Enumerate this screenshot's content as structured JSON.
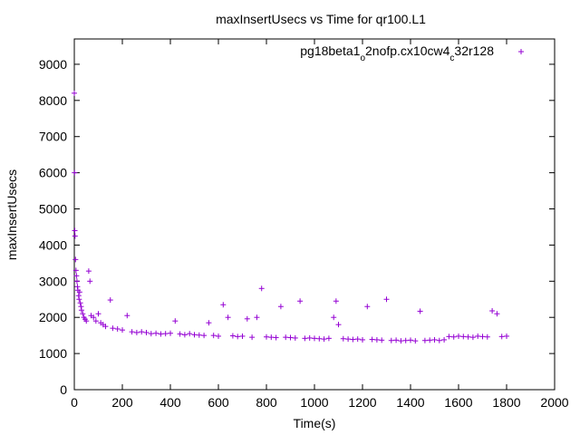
{
  "chart_data": {
    "type": "scatter",
    "title": "maxInsertUsecs vs Time for qr100.L1",
    "xlabel": "Time(s)",
    "ylabel": "maxInsertUsecs",
    "xlim": [
      0,
      2000
    ],
    "ylim": [
      0,
      9700
    ],
    "x_ticks": [
      "0",
      "200",
      "400",
      "600",
      "800",
      "1000",
      "1200",
      "1400",
      "1600",
      "1800",
      "2000"
    ],
    "y_ticks": [
      "0",
      "1000",
      "2000",
      "3000",
      "4000",
      "5000",
      "6000",
      "7000",
      "8000",
      "9000"
    ],
    "grid": false,
    "legend_position": "top-right",
    "series": [
      {
        "name": "pg18beta1_o2nofp.cx10cw4_c32r128",
        "name_parts": {
          "a": "pg18beta1",
          "sub1": "o",
          "b": "2nofp.cx10cw4",
          "sub2": "c",
          "c": "32r128"
        },
        "marker": "+",
        "color": "#9400d3",
        "points": [
          [
            0,
            8200
          ],
          [
            1,
            6000
          ],
          [
            2,
            4400
          ],
          [
            3,
            4250
          ],
          [
            5,
            3600
          ],
          [
            7,
            3300
          ],
          [
            9,
            3150
          ],
          [
            11,
            3000
          ],
          [
            13,
            2850
          ],
          [
            15,
            2750
          ],
          [
            18,
            2600
          ],
          [
            20,
            2500
          ],
          [
            22,
            2700
          ],
          [
            25,
            2400
          ],
          [
            28,
            2300
          ],
          [
            30,
            2200
          ],
          [
            35,
            2100
          ],
          [
            40,
            2000
          ],
          [
            45,
            1950
          ],
          [
            50,
            1900
          ],
          [
            60,
            3280
          ],
          [
            65,
            3000
          ],
          [
            70,
            2050
          ],
          [
            80,
            2000
          ],
          [
            90,
            1900
          ],
          [
            100,
            2100
          ],
          [
            110,
            1850
          ],
          [
            120,
            1800
          ],
          [
            130,
            1750
          ],
          [
            150,
            2480
          ],
          [
            160,
            1700
          ],
          [
            180,
            1680
          ],
          [
            200,
            1650
          ],
          [
            220,
            2050
          ],
          [
            240,
            1600
          ],
          [
            260,
            1580
          ],
          [
            280,
            1600
          ],
          [
            300,
            1580
          ],
          [
            320,
            1550
          ],
          [
            340,
            1560
          ],
          [
            360,
            1540
          ],
          [
            380,
            1550
          ],
          [
            400,
            1560
          ],
          [
            420,
            1900
          ],
          [
            440,
            1540
          ],
          [
            460,
            1520
          ],
          [
            480,
            1550
          ],
          [
            500,
            1520
          ],
          [
            520,
            1510
          ],
          [
            540,
            1500
          ],
          [
            560,
            1850
          ],
          [
            580,
            1500
          ],
          [
            600,
            1480
          ],
          [
            620,
            2350
          ],
          [
            640,
            2000
          ],
          [
            660,
            1490
          ],
          [
            680,
            1470
          ],
          [
            700,
            1480
          ],
          [
            720,
            1960
          ],
          [
            740,
            1450
          ],
          [
            760,
            2000
          ],
          [
            780,
            2800
          ],
          [
            800,
            1460
          ],
          [
            820,
            1450
          ],
          [
            840,
            1440
          ],
          [
            860,
            2300
          ],
          [
            880,
            1450
          ],
          [
            900,
            1440
          ],
          [
            920,
            1430
          ],
          [
            940,
            2450
          ],
          [
            960,
            1420
          ],
          [
            980,
            1430
          ],
          [
            1000,
            1420
          ],
          [
            1020,
            1410
          ],
          [
            1040,
            1400
          ],
          [
            1060,
            1420
          ],
          [
            1080,
            2000
          ],
          [
            1090,
            2450
          ],
          [
            1100,
            1800
          ],
          [
            1120,
            1410
          ],
          [
            1140,
            1400
          ],
          [
            1160,
            1390
          ],
          [
            1180,
            1400
          ],
          [
            1200,
            1380
          ],
          [
            1220,
            2300
          ],
          [
            1240,
            1390
          ],
          [
            1260,
            1380
          ],
          [
            1280,
            1370
          ],
          [
            1300,
            2500
          ],
          [
            1320,
            1360
          ],
          [
            1340,
            1370
          ],
          [
            1360,
            1350
          ],
          [
            1380,
            1360
          ],
          [
            1400,
            1370
          ],
          [
            1420,
            1350
          ],
          [
            1440,
            2170
          ],
          [
            1460,
            1360
          ],
          [
            1480,
            1370
          ],
          [
            1500,
            1380
          ],
          [
            1520,
            1360
          ],
          [
            1540,
            1380
          ],
          [
            1560,
            1470
          ],
          [
            1580,
            1460
          ],
          [
            1600,
            1480
          ],
          [
            1620,
            1470
          ],
          [
            1640,
            1460
          ],
          [
            1660,
            1450
          ],
          [
            1680,
            1480
          ],
          [
            1700,
            1470
          ],
          [
            1720,
            1460
          ],
          [
            1740,
            2180
          ],
          [
            1760,
            2100
          ],
          [
            1780,
            1470
          ],
          [
            1800,
            1480
          ]
        ]
      }
    ]
  }
}
